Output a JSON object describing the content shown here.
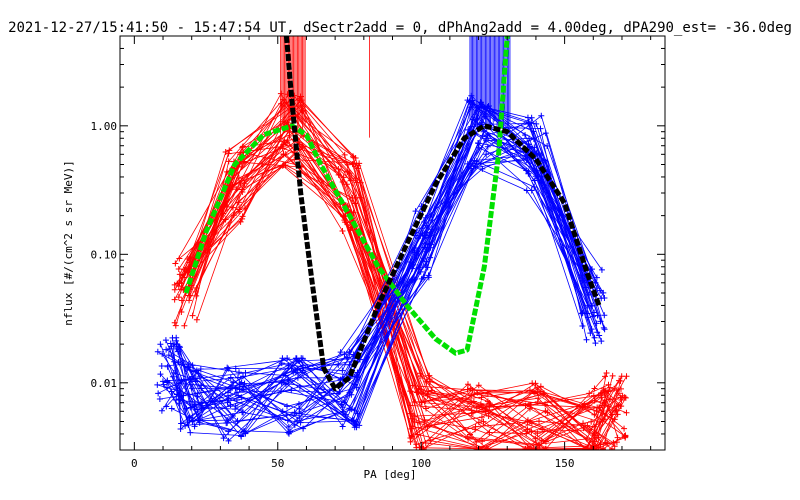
{
  "chart_data": {
    "type": "line",
    "title": "2021-12-27/15:41:50 - 15:47:54 UT, dSectr2add = 0, dPhAng2add = 4.00deg, dPA290_est= -36.0deg",
    "xlabel": "PA [deg]",
    "ylabel": "nflux [#/(cm^2 s sr MeV)]",
    "xlim": [
      -5,
      185
    ],
    "ylim": [
      0.003,
      5.0
    ],
    "yscale": "log",
    "grid": false,
    "x_ticks": [
      0,
      50,
      100,
      150
    ],
    "x_tick_labels": [
      "0",
      "50",
      "100",
      "150"
    ],
    "y_ticks": [
      0.01,
      0.1,
      1.0
    ],
    "y_tick_labels": [
      "0.01",
      "0.10",
      "1.00"
    ],
    "series": [
      {
        "color": "#ff0000",
        "style": "thin lines with + markers (many sweeps)",
        "representative_x": [
          18,
          35,
          55,
          75,
          100,
          120,
          140,
          160,
          168
        ],
        "representative_y": [
          0.05,
          0.35,
          0.9,
          0.3,
          0.006,
          0.005,
          0.005,
          0.005,
          0.006
        ]
      },
      {
        "color": "#0000ff",
        "style": "thin lines with + markers (many sweeps)",
        "representative_x": [
          12,
          20,
          35,
          55,
          75,
          100,
          120,
          140,
          160
        ],
        "representative_y": [
          0.012,
          0.008,
          0.007,
          0.008,
          0.009,
          0.12,
          0.9,
          0.6,
          0.04
        ]
      },
      {
        "color": "#00e000",
        "style": "thick dashed fit",
        "x": [
          18,
          25,
          35,
          45,
          55,
          60,
          65,
          75,
          85,
          95,
          105,
          112,
          116,
          122,
          127,
          130
        ],
        "y": [
          0.05,
          0.15,
          0.5,
          0.85,
          1.0,
          0.85,
          0.5,
          0.2,
          0.08,
          0.04,
          0.022,
          0.017,
          0.018,
          0.08,
          0.6,
          5.0
        ]
      },
      {
        "color": "#000000",
        "style": "thick dashed fit",
        "x": [
          53,
          55,
          58,
          62,
          66,
          70,
          75,
          85,
          95,
          105,
          115,
          122,
          130,
          140,
          150,
          158,
          162
        ],
        "y": [
          5.0,
          1.5,
          0.3,
          0.06,
          0.013,
          0.009,
          0.011,
          0.04,
          0.12,
          0.35,
          0.8,
          1.0,
          0.9,
          0.55,
          0.25,
          0.07,
          0.04
        ]
      }
    ],
    "spikes": [
      {
        "color": "#ff0000",
        "x_range": [
          51,
          60
        ],
        "y_from": 1.0,
        "y_to": 5.0
      },
      {
        "color": "#ff0000",
        "x": 82,
        "y_from": 0.7,
        "y_to": 5.0
      },
      {
        "color": "#0000ff",
        "x_range": [
          117,
          131
        ],
        "y_from": 1.0,
        "y_to": 5.0
      }
    ]
  }
}
